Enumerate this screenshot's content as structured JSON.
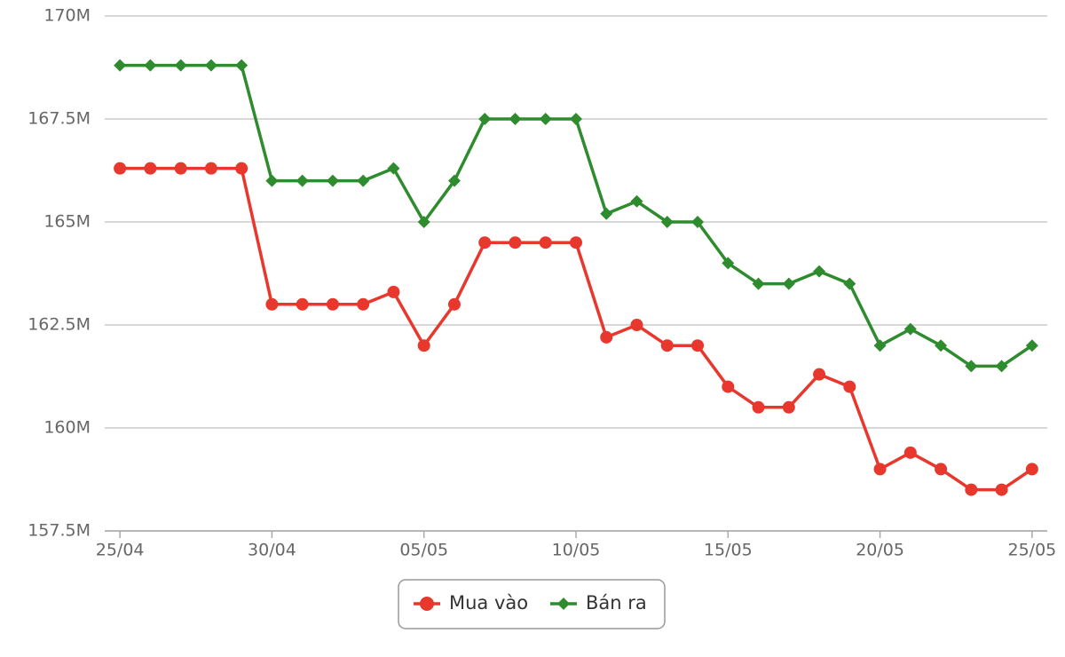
{
  "chart_data": {
    "type": "line",
    "categories": [
      "25/04",
      null,
      null,
      null,
      null,
      "30/04",
      null,
      null,
      null,
      null,
      "05/05",
      null,
      null,
      null,
      null,
      "10/05",
      null,
      null,
      null,
      null,
      "15/05",
      null,
      null,
      null,
      null,
      "20/05",
      null,
      null,
      null,
      null,
      "25/05"
    ],
    "series": [
      {
        "name": "Mua vào",
        "color": "#e8372c",
        "marker": "circle",
        "values": [
          166300000,
          166300000,
          166300000,
          166300000,
          166300000,
          163000000,
          163000000,
          163000000,
          163000000,
          163300000,
          162000000,
          163000000,
          164500000,
          164500000,
          164500000,
          164500000,
          162200000,
          162500000,
          162000000,
          162000000,
          161000000,
          160500000,
          160500000,
          161300000,
          161000000,
          159000000,
          159400000,
          159000000,
          158500000,
          158500000,
          159000000
        ]
      },
      {
        "name": "Bán ra",
        "color": "#2e8b2e",
        "marker": "diamond",
        "values": [
          168800000,
          168800000,
          168800000,
          168800000,
          168800000,
          166000000,
          166000000,
          166000000,
          166000000,
          166300000,
          165000000,
          166000000,
          167500000,
          167500000,
          167500000,
          167500000,
          165200000,
          165500000,
          165000000,
          165000000,
          164000000,
          163500000,
          163500000,
          163800000,
          163500000,
          162000000,
          162400000,
          162000000,
          161500000,
          161500000,
          162000000
        ]
      }
    ],
    "ylim": [
      157500000,
      170000000
    ],
    "yticks": [
      {
        "value": 157500000,
        "label": "157.5M"
      },
      {
        "value": 160000000,
        "label": "160M"
      },
      {
        "value": 162500000,
        "label": "162.5M"
      },
      {
        "value": 165000000,
        "label": "165M"
      },
      {
        "value": 167500000,
        "label": "167.5M"
      },
      {
        "value": 170000000,
        "label": "170M"
      }
    ],
    "grid": true,
    "legend": "bottom"
  }
}
